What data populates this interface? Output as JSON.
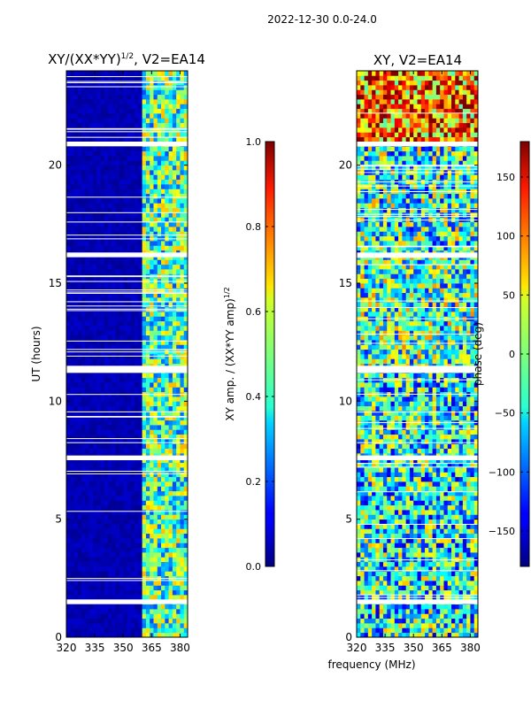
{
  "suptitle": "2022-12-30 0.0-24.0",
  "shared_xlabel": "frequency (MHz)",
  "chart_data": [
    {
      "type": "heatmap",
      "title": "XY/(XX*YY)",
      "title_superscript": "1/2",
      "title_suffix": ", V2=EA14",
      "xlabel": "",
      "ylabel": "UT (hours)",
      "xlim": [
        320,
        384
      ],
      "ylim": [
        0,
        24
      ],
      "xticks": [
        320,
        335,
        350,
        365,
        380
      ],
      "yticks": [
        0,
        5,
        10,
        15,
        20
      ],
      "colorbar": {
        "label": "XY amp. / (XX*YY amp)",
        "label_superscript": "1/2",
        "range": [
          0.0,
          1.0
        ],
        "ticks": [
          "0.0",
          "0.2",
          "0.4",
          "0.6",
          "0.8",
          "1.0"
        ],
        "tick_values": [
          0.0,
          0.2,
          0.4,
          0.6,
          0.8,
          1.0
        ],
        "colormap": "jet"
      },
      "band_structure": [
        {
          "freq_range": [
            320,
            361
          ],
          "typical_value": 0.02
        },
        {
          "freq_range": [
            361,
            384
          ],
          "typical_value": 0.45
        }
      ],
      "flagged_time_ranges": [
        [
          20.8,
          21.0
        ],
        [
          16.1,
          16.3
        ],
        [
          11.2,
          11.5
        ],
        [
          7.5,
          7.7
        ],
        [
          1.4,
          1.6
        ]
      ]
    },
    {
      "type": "heatmap",
      "title": "XY, V2=EA14",
      "xlabel": "",
      "ylabel": "",
      "xlim": [
        320,
        384
      ],
      "ylim": [
        0,
        24
      ],
      "xticks": [
        320,
        335,
        350,
        365,
        380
      ],
      "yticks": [
        0,
        5,
        10,
        15,
        20
      ],
      "colorbar": {
        "label": "phase (deg)",
        "range": [
          -180,
          180
        ],
        "ticks": [
          "−150",
          "−100",
          "−50",
          "0",
          "50",
          "100",
          "150"
        ],
        "tick_values": [
          -150,
          -100,
          -50,
          0,
          50,
          100,
          150
        ],
        "colormap": "jet"
      },
      "phase_regions": [
        {
          "time_range": [
            21,
            24
          ],
          "typical_value": 90
        },
        {
          "time_range": [
            16.3,
            20.8
          ],
          "typical_value": -30
        },
        {
          "time_range": [
            11.5,
            16.1
          ],
          "typical_value": -20
        },
        {
          "time_range": [
            0,
            11.2
          ],
          "typical_value": -40
        }
      ],
      "flagged_time_ranges": [
        [
          20.8,
          21.0
        ],
        [
          16.1,
          16.3
        ],
        [
          11.2,
          11.5
        ],
        [
          7.5,
          7.7
        ],
        [
          1.4,
          1.6
        ]
      ]
    }
  ]
}
